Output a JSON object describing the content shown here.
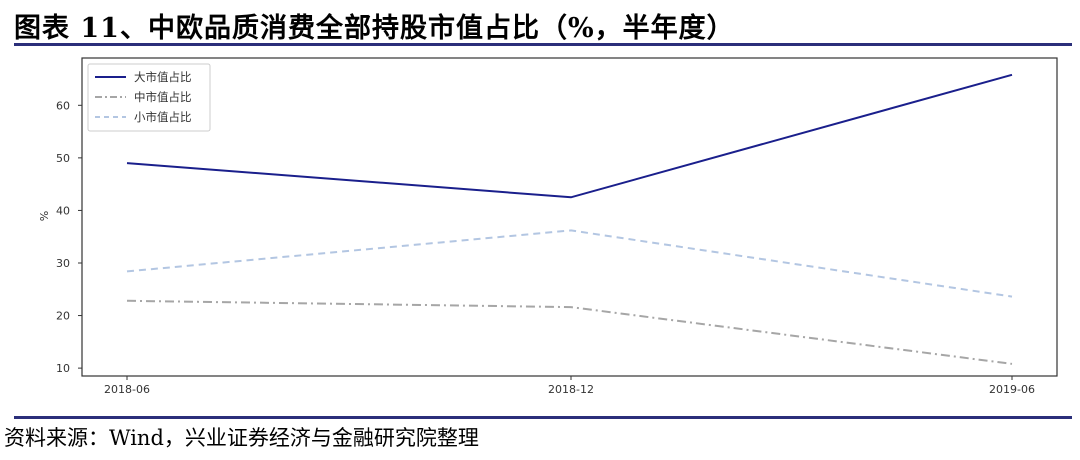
{
  "figure": {
    "title": "图表 11、中欧品质消费全部持股市值占比（%，半年度）",
    "source": "资料来源：Wind，兴业证券经济与金融研究院整理"
  },
  "chart_data": {
    "type": "line",
    "title": "",
    "xlabel": "",
    "ylabel": "%",
    "categories": [
      "2018-06",
      "2018-12",
      "2019-06"
    ],
    "yticks": [
      10,
      20,
      30,
      40,
      50,
      60
    ],
    "ylim": [
      8.5,
      69
    ],
    "grid": false,
    "legend_position": "top-left",
    "series": [
      {
        "name": "大市值占比",
        "values": [
          49.0,
          42.5,
          65.8
        ],
        "color": "#1a1f8c",
        "style": "solid"
      },
      {
        "name": "中市值占比",
        "values": [
          22.8,
          21.6,
          10.8
        ],
        "color": "#a6a6a6",
        "style": "dashdot"
      },
      {
        "name": "小市值占比",
        "values": [
          28.4,
          36.2,
          23.6
        ],
        "color": "#b3c6e2",
        "style": "dashed"
      }
    ]
  }
}
